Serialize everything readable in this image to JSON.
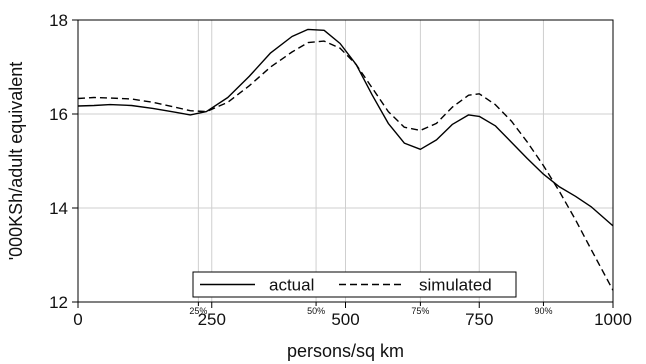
{
  "chart_data": {
    "type": "line",
    "xlabel": "persons/sq km",
    "ylabel": "'000KSh/adult equivalent",
    "xlim": [
      0,
      1000
    ],
    "ylim": [
      12,
      18
    ],
    "x_ticks": [
      0,
      250,
      500,
      750,
      1000
    ],
    "y_ticks": [
      12,
      14,
      16,
      18
    ],
    "grid": "x-gridlines at 250, 500, 750 plus percentile marks; y-gridlines at 14, 16",
    "percentile_markers": [
      {
        "label": "25%",
        "x": 225
      },
      {
        "label": "50%",
        "x": 445
      },
      {
        "label": "75%",
        "x": 640
      },
      {
        "label": "90%",
        "x": 870
      }
    ],
    "legend_position": "bottom-center",
    "series": [
      {
        "name": "actual",
        "style": "solid",
        "color": "#000000",
        "points": [
          [
            0,
            16.17
          ],
          [
            30,
            16.18
          ],
          [
            60,
            16.2
          ],
          [
            100,
            16.18
          ],
          [
            140,
            16.12
          ],
          [
            180,
            16.04
          ],
          [
            210,
            15.98
          ],
          [
            240,
            16.05
          ],
          [
            280,
            16.35
          ],
          [
            320,
            16.8
          ],
          [
            360,
            17.3
          ],
          [
            400,
            17.65
          ],
          [
            430,
            17.8
          ],
          [
            460,
            17.78
          ],
          [
            490,
            17.5
          ],
          [
            520,
            17.05
          ],
          [
            550,
            16.4
          ],
          [
            580,
            15.8
          ],
          [
            610,
            15.38
          ],
          [
            640,
            15.25
          ],
          [
            670,
            15.45
          ],
          [
            700,
            15.78
          ],
          [
            730,
            15.98
          ],
          [
            750,
            15.95
          ],
          [
            780,
            15.75
          ],
          [
            810,
            15.4
          ],
          [
            840,
            15.05
          ],
          [
            870,
            14.72
          ],
          [
            900,
            14.45
          ],
          [
            930,
            14.25
          ],
          [
            960,
            14.02
          ],
          [
            1000,
            13.62
          ]
        ]
      },
      {
        "name": "simulated",
        "style": "dashed",
        "color": "#000000",
        "points": [
          [
            0,
            16.33
          ],
          [
            30,
            16.35
          ],
          [
            60,
            16.34
          ],
          [
            100,
            16.32
          ],
          [
            140,
            16.25
          ],
          [
            180,
            16.15
          ],
          [
            210,
            16.07
          ],
          [
            240,
            16.05
          ],
          [
            280,
            16.25
          ],
          [
            320,
            16.6
          ],
          [
            360,
            17.0
          ],
          [
            400,
            17.32
          ],
          [
            430,
            17.52
          ],
          [
            460,
            17.55
          ],
          [
            490,
            17.4
          ],
          [
            520,
            17.05
          ],
          [
            550,
            16.55
          ],
          [
            580,
            16.05
          ],
          [
            610,
            15.72
          ],
          [
            640,
            15.65
          ],
          [
            670,
            15.8
          ],
          [
            700,
            16.15
          ],
          [
            730,
            16.4
          ],
          [
            750,
            16.43
          ],
          [
            780,
            16.2
          ],
          [
            810,
            15.85
          ],
          [
            840,
            15.4
          ],
          [
            870,
            14.9
          ],
          [
            900,
            14.35
          ],
          [
            930,
            13.75
          ],
          [
            960,
            13.1
          ],
          [
            1000,
            12.25
          ]
        ]
      }
    ]
  }
}
